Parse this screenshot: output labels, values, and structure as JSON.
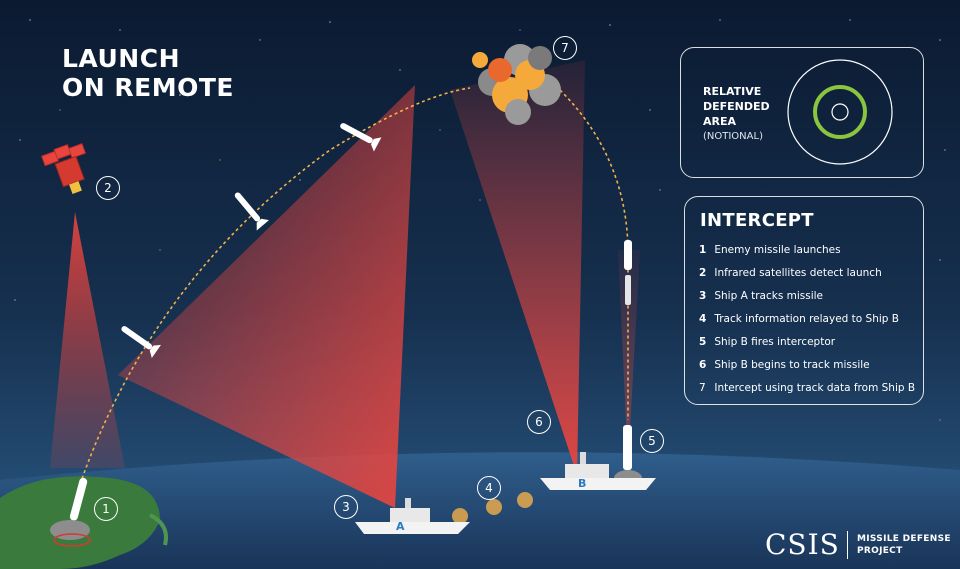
{
  "title": {
    "line1": "LAUNCH",
    "line2": "ON REMOTE"
  },
  "relative_area": {
    "line1": "RELATIVE",
    "line2": "DEFENDED",
    "line3": "AREA",
    "line4": "(NOTIONAL)"
  },
  "intercept": {
    "title": "INTERCEPT",
    "steps": [
      {
        "num": "1",
        "text": "Enemy missile launches"
      },
      {
        "num": "2",
        "text": "Infrared satellites detect launch"
      },
      {
        "num": "3",
        "text": "Ship A tracks missile"
      },
      {
        "num": "4",
        "text": "Track information relayed to Ship B"
      },
      {
        "num": "5",
        "text": "Ship B fires interceptor"
      },
      {
        "num": "6",
        "text": "Ship B begins to track missile"
      },
      {
        "num": "7",
        "text": "Intercept using track data from Ship B"
      }
    ]
  },
  "markers": [
    "1",
    "2",
    "3",
    "4",
    "5",
    "6",
    "7"
  ],
  "ships": {
    "a": "A",
    "b": "B"
  },
  "logo": {
    "word": "CSIS",
    "line1": "MISSILE DEFENSE",
    "line2": "PROJECT"
  },
  "colors": {
    "sky_top": "#0d1c33",
    "sky_bottom": "#25476e",
    "beam": "#e8453f",
    "ring": "#8bc53f",
    "land": "#3a7a3c",
    "ocean": "#1f3d64"
  },
  "icons": [
    "satellite-icon",
    "missile-icon",
    "explosion-icon",
    "ship-icon",
    "interceptor-icon"
  ]
}
